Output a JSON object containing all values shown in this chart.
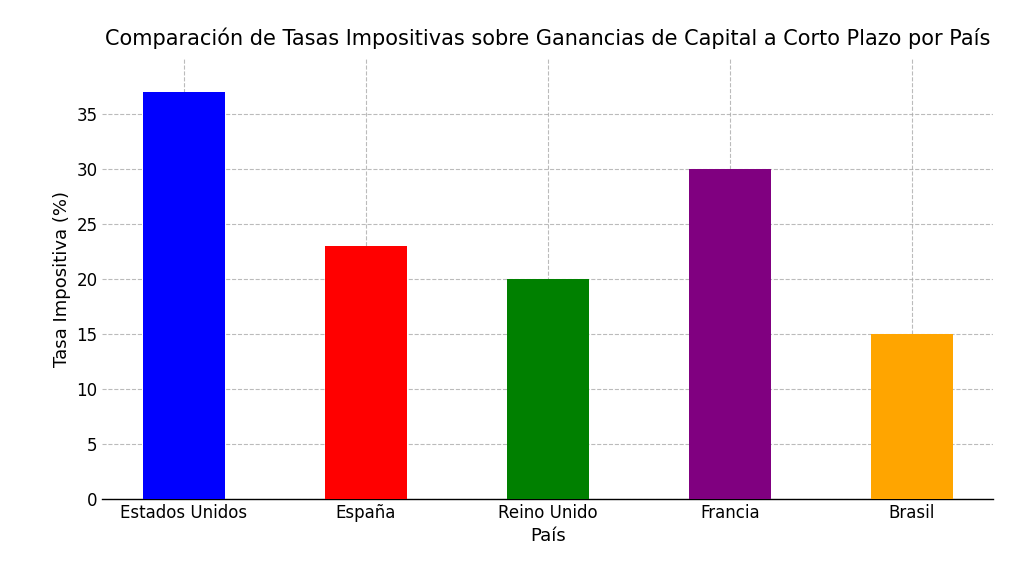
{
  "title": "Comparación de Tasas Impositivas sobre Ganancias de Capital a Corto Plazo por País",
  "xlabel": "País",
  "ylabel": "Tasa Impositiva (%)",
  "categories": [
    "Estados Unidos",
    "España",
    "Reino Unido",
    "Francia",
    "Brasil"
  ],
  "values": [
    37,
    23,
    20,
    30,
    15
  ],
  "bar_colors": [
    "blue",
    "red",
    "green",
    "purple",
    "orange"
  ],
  "ylim": [
    0,
    40
  ],
  "yticks": [
    0,
    5,
    10,
    15,
    20,
    25,
    30,
    35
  ],
  "background_color": "#ffffff",
  "grid_color": "#aaaaaa",
  "title_fontsize": 15,
  "label_fontsize": 13,
  "tick_fontsize": 12,
  "bar_width": 0.45,
  "figsize": [
    10.24,
    5.87
  ],
  "dpi": 100
}
